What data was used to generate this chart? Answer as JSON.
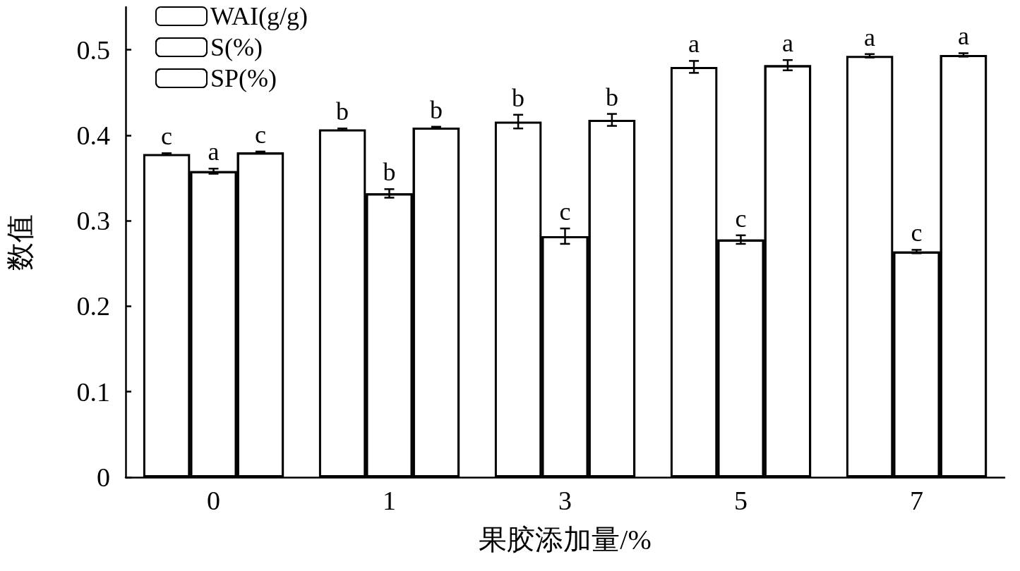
{
  "chart_data": {
    "type": "bar",
    "xlabel": "果胶添加量/%",
    "ylabel": "数值",
    "categories": [
      "0",
      "1",
      "3",
      "5",
      "7"
    ],
    "series": [
      {
        "name": "WAI(g/g)",
        "color": "#ffffff",
        "values": [
          0.378,
          0.407,
          0.416,
          0.48,
          0.493
        ],
        "errors": [
          0.001,
          0.001,
          0.008,
          0.007,
          0.002
        ],
        "value_labels": [
          "c",
          "b",
          "b",
          "a",
          "a"
        ]
      },
      {
        "name": "S(%)",
        "color": "#ffffff",
        "values": [
          0.358,
          0.332,
          0.282,
          0.278,
          0.264
        ],
        "errors": [
          0.003,
          0.005,
          0.009,
          0.005,
          0.002
        ],
        "value_labels": [
          "a",
          "b",
          "c",
          "c",
          "c"
        ]
      },
      {
        "name": "SP(%)",
        "color": "#ffffff",
        "values": [
          0.38,
          0.409,
          0.418,
          0.482,
          0.494
        ],
        "errors": [
          0.001,
          0.001,
          0.007,
          0.006,
          0.002
        ],
        "value_labels": [
          "c",
          "b",
          "b",
          "a",
          "a"
        ]
      }
    ],
    "ylim": [
      0,
      0.55
    ],
    "yticks": [
      0,
      0.1,
      0.2,
      0.3,
      0.4,
      0.5
    ],
    "grid": false,
    "legend": "top left"
  }
}
